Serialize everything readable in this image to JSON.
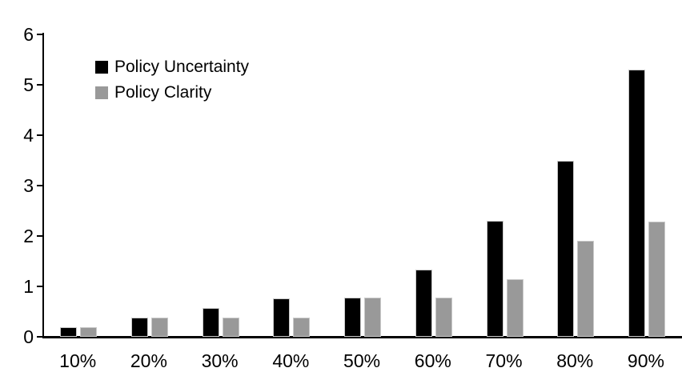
{
  "chart_data": {
    "type": "bar",
    "title": "",
    "xlabel": "",
    "ylabel": "",
    "categories": [
      "10%",
      "20%",
      "30%",
      "40%",
      "50%",
      "60%",
      "70%",
      "80%",
      "90%"
    ],
    "series": [
      {
        "name": "Policy Uncertainty",
        "color": "#000000",
        "values": [
          0.19,
          0.38,
          0.57,
          0.76,
          0.78,
          1.33,
          2.3,
          3.5,
          5.3
        ]
      },
      {
        "name": "Policy Clarity",
        "color": "#999999",
        "values": [
          0.19,
          0.38,
          0.38,
          0.38,
          0.77,
          0.77,
          1.14,
          1.9,
          2.29
        ]
      }
    ],
    "ylim": [
      0,
      6
    ],
    "yticks": [
      0,
      1,
      2,
      3,
      4,
      5,
      6
    ],
    "grid": false,
    "legend_position": "top-left",
    "background_color": "#ffffff",
    "axis_color": "#000000"
  }
}
